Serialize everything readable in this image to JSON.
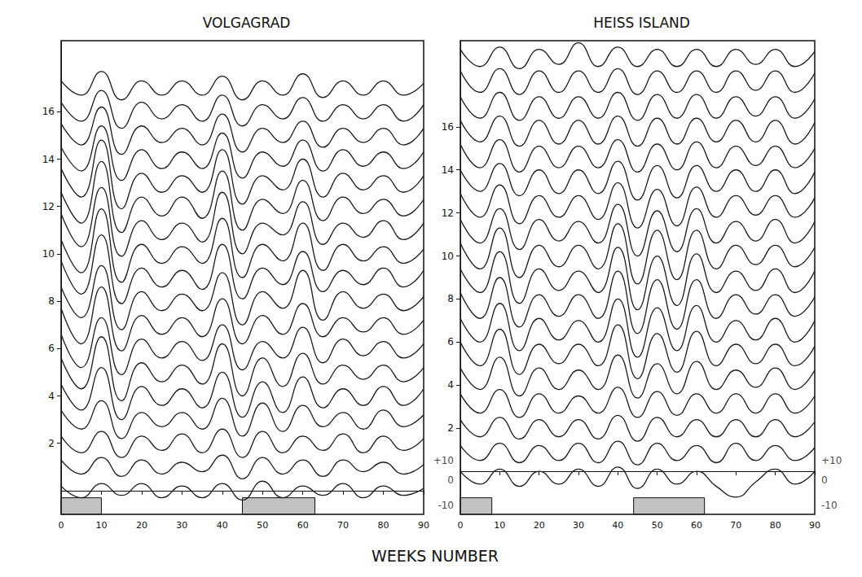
{
  "x_label": "WEEKS NUMBER",
  "chart_data": [
    {
      "type": "line",
      "title": "VOLGAGRAD",
      "color": "#1a1a1a",
      "grid": false,
      "tick_labels": true,
      "x": [
        0,
        5,
        10,
        15,
        20,
        25,
        30,
        35,
        40,
        45,
        50,
        55,
        60,
        65,
        70,
        75,
        80,
        85,
        90
      ],
      "xlim": [
        0,
        90
      ],
      "xticks": [
        0,
        10,
        20,
        30,
        40,
        50,
        60,
        70,
        80,
        90
      ],
      "ylim": [
        -1,
        19
      ],
      "yticks": [
        2,
        4,
        6,
        8,
        10,
        12,
        14,
        16
      ],
      "marked_weeks": [
        [
          0,
          10
        ],
        [
          45,
          63
        ]
      ],
      "series": [
        {
          "values": [
            0.2,
            -0.3,
            0.3,
            -0.2,
            0.3,
            -0.3,
            0.2,
            -0.3,
            0.3,
            -0.4,
            0.4,
            -0.3,
            0.2,
            -0.2,
            0.3,
            -0.3,
            0.2,
            -0.2,
            0.1
          ]
        },
        {
          "values": [
            1.3,
            0.7,
            1.4,
            0.6,
            1.3,
            0.7,
            1.2,
            0.8,
            1.5,
            0.5,
            1.4,
            0.7,
            1.3,
            0.6,
            1.3,
            0.8,
            1.2,
            0.7,
            1.1
          ]
        },
        {
          "values": [
            2.3,
            1.6,
            2.5,
            1.4,
            2.3,
            1.7,
            2.4,
            1.6,
            2.6,
            1.4,
            2.5,
            1.6,
            2.3,
            1.7,
            2.4,
            1.6,
            2.3,
            1.7,
            2.2
          ]
        },
        {
          "values": [
            3.4,
            2.6,
            3.8,
            2.2,
            3.3,
            2.7,
            3.3,
            2.6,
            3.9,
            2.3,
            3.7,
            2.5,
            3.6,
            2.7,
            3.3,
            2.6,
            3.4,
            2.7,
            3.2
          ]
        },
        {
          "values": [
            4.5,
            3.4,
            5.2,
            3.0,
            4.4,
            3.6,
            4.3,
            3.5,
            5.0,
            3.1,
            4.6,
            3.3,
            4.8,
            3.5,
            4.3,
            3.6,
            4.4,
            3.6,
            4.3
          ]
        },
        {
          "values": [
            5.6,
            4.3,
            6.5,
            3.8,
            5.4,
            4.6,
            5.3,
            4.5,
            6.2,
            4.0,
            5.6,
            4.4,
            5.8,
            4.5,
            5.3,
            4.7,
            5.3,
            4.6,
            5.2
          ]
        },
        {
          "values": [
            6.6,
            5.2,
            7.3,
            4.9,
            6.4,
            5.6,
            6.3,
            5.5,
            7.0,
            5.1,
            6.3,
            5.6,
            6.9,
            5.4,
            6.4,
            5.7,
            6.3,
            5.6,
            6.2
          ]
        },
        {
          "values": [
            7.7,
            6.2,
            8.6,
            5.9,
            7.4,
            6.6,
            7.3,
            6.5,
            8.1,
            6.2,
            7.4,
            6.6,
            7.9,
            6.5,
            7.3,
            6.7,
            7.3,
            6.6,
            7.2
          ]
        },
        {
          "values": [
            8.6,
            7.3,
            9.5,
            6.8,
            8.4,
            7.6,
            8.3,
            7.6,
            9.2,
            7.0,
            8.4,
            7.7,
            9.3,
            7.2,
            8.4,
            7.7,
            8.3,
            7.6,
            8.2
          ]
        },
        {
          "values": [
            9.7,
            8.3,
            10.8,
            7.9,
            9.4,
            8.6,
            9.3,
            8.5,
            10.4,
            8.1,
            9.4,
            8.7,
            10.1,
            8.4,
            9.3,
            8.7,
            9.4,
            8.6,
            9.3
          ]
        },
        {
          "values": [
            10.6,
            9.2,
            11.9,
            8.8,
            10.4,
            9.6,
            10.3,
            9.6,
            11.5,
            9.0,
            10.4,
            9.7,
            11.3,
            9.3,
            10.4,
            9.7,
            10.3,
            9.6,
            10.2
          ]
        },
        {
          "values": [
            11.7,
            10.3,
            12.8,
            9.9,
            11.4,
            10.6,
            11.3,
            10.5,
            12.6,
            10.0,
            11.3,
            10.8,
            12.2,
            10.4,
            11.3,
            10.7,
            11.4,
            10.6,
            11.3
          ]
        },
        {
          "values": [
            12.6,
            11.3,
            13.9,
            10.9,
            12.4,
            11.6,
            12.4,
            11.5,
            13.5,
            11.0,
            12.3,
            11.7,
            13.1,
            11.4,
            12.4,
            11.7,
            12.3,
            11.6,
            12.3
          ]
        },
        {
          "values": [
            13.6,
            12.4,
            14.8,
            11.9,
            13.4,
            12.6,
            13.3,
            12.6,
            14.4,
            12.1,
            13.3,
            12.7,
            14.0,
            12.4,
            13.4,
            12.7,
            13.3,
            12.6,
            13.3
          ]
        },
        {
          "values": [
            14.5,
            13.5,
            15.4,
            13.1,
            14.4,
            13.6,
            14.3,
            13.6,
            15.1,
            13.2,
            14.3,
            13.7,
            14.8,
            13.5,
            14.4,
            13.7,
            14.3,
            13.6,
            14.3
          ]
        },
        {
          "values": [
            15.5,
            14.6,
            16.2,
            14.2,
            15.4,
            14.7,
            15.3,
            14.6,
            15.9,
            14.3,
            15.3,
            14.7,
            15.6,
            14.5,
            15.3,
            14.7,
            15.3,
            14.6,
            15.3
          ]
        },
        {
          "values": [
            16.4,
            15.6,
            16.9,
            15.3,
            16.4,
            15.7,
            16.3,
            15.6,
            16.7,
            15.4,
            16.3,
            15.7,
            16.6,
            15.6,
            16.3,
            15.7,
            16.3,
            15.6,
            16.3
          ]
        },
        {
          "values": [
            17.3,
            16.7,
            17.7,
            16.5,
            17.3,
            16.7,
            17.3,
            16.7,
            17.5,
            16.5,
            17.3,
            16.7,
            17.6,
            16.6,
            17.3,
            16.7,
            17.3,
            16.7,
            17.2
          ]
        }
      ]
    },
    {
      "type": "line",
      "title": "HEISS ISLAND",
      "color": "#1a1a1a",
      "grid": false,
      "tick_labels": true,
      "x": [
        0,
        5,
        10,
        15,
        20,
        25,
        30,
        35,
        40,
        45,
        50,
        55,
        60,
        65,
        70,
        75,
        80,
        85,
        90
      ],
      "xlim": [
        0,
        90
      ],
      "xticks": [
        0,
        10,
        20,
        30,
        40,
        50,
        60,
        70,
        80,
        90
      ],
      "ylim": [
        -2,
        20
      ],
      "yticks": [
        2,
        4,
        6,
        8,
        10,
        12,
        14,
        16
      ],
      "marked_weeks": [
        [
          0,
          8
        ],
        [
          44,
          62
        ]
      ],
      "annotations": [
        {
          "text": "+10",
          "x": 0,
          "y": 0.5
        },
        {
          "text": "0",
          "x": 0,
          "y": -0.4
        },
        {
          "text": "-10",
          "x": 0,
          "y": -1.6
        },
        {
          "text": "+10",
          "x": 90,
          "y": 0.5
        },
        {
          "text": "0",
          "x": 90,
          "y": -0.4
        },
        {
          "text": "-10",
          "x": 90,
          "y": -1.6
        }
      ],
      "series": [
        {
          "values": [
            0.0,
            -0.6,
            0.1,
            -0.7,
            0.0,
            -0.6,
            0.1,
            -0.7,
            0.2,
            -0.8,
            0.1,
            -0.6,
            0.0,
            -0.7,
            -1.2,
            -0.5,
            0.1,
            -0.6,
            0.0
          ]
        },
        {
          "values": [
            1.2,
            0.5,
            1.3,
            0.4,
            1.2,
            0.5,
            1.3,
            0.4,
            1.4,
            0.3,
            1.3,
            0.5,
            1.2,
            0.4,
            1.3,
            0.5,
            1.2,
            0.5,
            1.1
          ]
        },
        {
          "values": [
            2.4,
            1.6,
            2.5,
            1.5,
            2.4,
            1.6,
            2.4,
            1.5,
            2.6,
            1.4,
            2.5,
            1.6,
            2.4,
            1.6,
            2.4,
            1.6,
            2.4,
            1.6,
            2.3
          ]
        },
        {
          "values": [
            3.6,
            2.7,
            3.8,
            2.5,
            3.6,
            2.7,
            3.5,
            2.7,
            3.9,
            2.5,
            3.7,
            2.6,
            3.6,
            2.7,
            3.6,
            2.7,
            3.6,
            2.7,
            3.5
          ]
        },
        {
          "values": [
            4.8,
            3.8,
            5.3,
            3.5,
            4.8,
            3.8,
            4.7,
            3.8,
            5.4,
            3.4,
            5.0,
            3.6,
            5.1,
            3.8,
            4.7,
            3.9,
            4.8,
            3.8,
            4.7
          ]
        },
        {
          "values": [
            6.0,
            4.9,
            6.6,
            4.5,
            5.9,
            5.0,
            5.9,
            4.9,
            6.8,
            4.3,
            6.4,
            4.6,
            6.5,
            4.9,
            5.9,
            5.0,
            5.9,
            4.9,
            5.8
          ]
        },
        {
          "values": [
            7.1,
            6.0,
            7.8,
            5.6,
            7.1,
            6.1,
            7.0,
            6.0,
            8.0,
            5.3,
            7.6,
            5.6,
            7.7,
            6.0,
            7.0,
            6.1,
            7.1,
            6.0,
            7.0
          ]
        },
        {
          "values": [
            8.3,
            7.1,
            9.0,
            6.7,
            8.2,
            7.2,
            8.2,
            7.1,
            9.3,
            6.4,
            8.9,
            6.6,
            8.9,
            7.1,
            8.2,
            7.3,
            8.2,
            7.2,
            8.1
          ]
        },
        {
          "values": [
            9.4,
            8.3,
            10.2,
            7.8,
            9.4,
            8.4,
            9.3,
            8.3,
            10.4,
            7.5,
            10.0,
            7.7,
            10.1,
            8.3,
            9.3,
            8.4,
            9.4,
            8.3,
            9.3
          ]
        },
        {
          "values": [
            10.6,
            9.4,
            11.3,
            9.0,
            10.5,
            9.5,
            10.5,
            9.4,
            11.5,
            8.7,
            11.2,
            8.9,
            11.2,
            9.4,
            10.5,
            9.6,
            10.5,
            9.5,
            10.4
          ]
        },
        {
          "values": [
            11.7,
            10.6,
            12.2,
            10.3,
            11.7,
            10.7,
            11.6,
            10.6,
            12.4,
            10.0,
            12.1,
            10.2,
            12.2,
            10.6,
            11.6,
            10.7,
            11.7,
            10.6,
            11.6
          ]
        },
        {
          "values": [
            12.9,
            11.8,
            13.3,
            11.5,
            12.8,
            11.8,
            12.8,
            11.7,
            13.4,
            11.3,
            13.1,
            11.4,
            13.2,
            11.8,
            12.8,
            11.9,
            12.8,
            11.8,
            12.7
          ]
        },
        {
          "values": [
            14.0,
            13.0,
            14.3,
            12.8,
            14.0,
            12.9,
            14.0,
            12.9,
            14.4,
            12.6,
            14.2,
            12.7,
            14.2,
            13.0,
            14.0,
            13.0,
            14.0,
            12.9,
            13.9
          ]
        },
        {
          "values": [
            15.2,
            14.1,
            15.4,
            13.9,
            15.1,
            14.1,
            15.1,
            14.1,
            15.4,
            13.9,
            15.2,
            14.0,
            15.3,
            14.1,
            15.1,
            14.2,
            15.1,
            14.1,
            15.0
          ]
        },
        {
          "values": [
            16.3,
            15.3,
            16.5,
            15.1,
            16.3,
            15.2,
            16.3,
            15.2,
            16.5,
            15.1,
            16.4,
            15.2,
            16.4,
            15.3,
            16.3,
            15.3,
            16.3,
            15.2,
            16.2
          ]
        },
        {
          "values": [
            17.4,
            16.4,
            17.6,
            16.3,
            17.4,
            16.4,
            17.4,
            16.4,
            17.6,
            16.3,
            17.5,
            16.4,
            17.5,
            16.4,
            17.4,
            16.5,
            17.4,
            16.4,
            17.3
          ]
        },
        {
          "values": [
            18.6,
            17.6,
            18.7,
            17.5,
            18.6,
            17.6,
            18.6,
            17.6,
            18.7,
            17.5,
            18.6,
            17.6,
            18.6,
            17.6,
            18.6,
            17.7,
            18.6,
            17.6,
            18.5
          ]
        },
        {
          "values": [
            19.6,
            18.8,
            19.7,
            18.7,
            19.6,
            18.9,
            19.9,
            18.8,
            19.7,
            18.8,
            19.6,
            18.8,
            19.6,
            18.8,
            19.6,
            18.9,
            19.6,
            18.8,
            19.5
          ]
        }
      ]
    }
  ]
}
